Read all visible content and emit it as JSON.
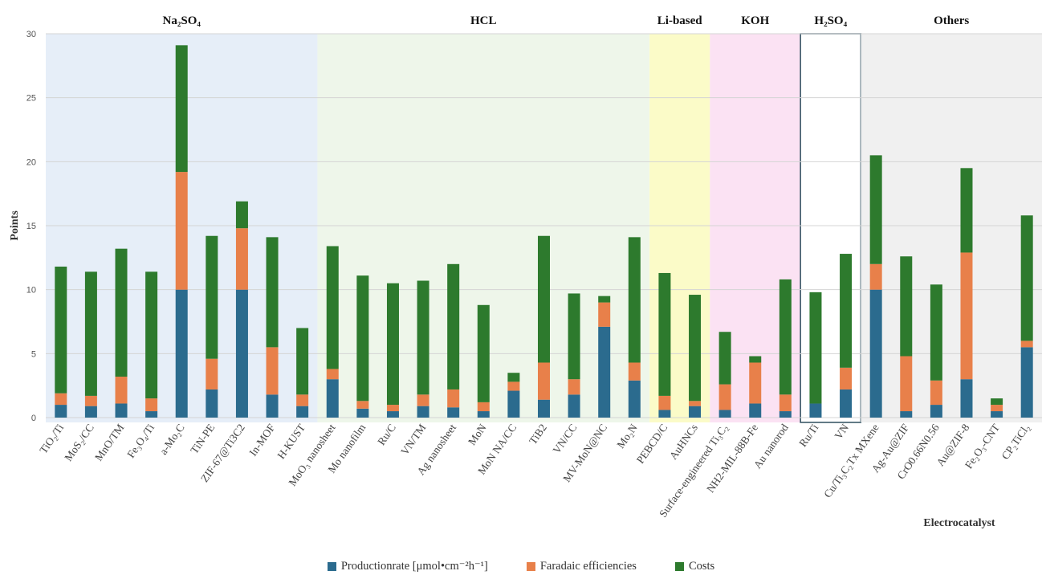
{
  "chart_data": {
    "type": "bar",
    "stacked": true,
    "xlabel": "Electrocatalyst",
    "ylabel": "Points",
    "ylim": [
      0,
      30
    ],
    "yticks": [
      0,
      5,
      10,
      15,
      20,
      25,
      30
    ],
    "grid": true,
    "legend_position": "bottom",
    "categories": [
      "TiO₂/Ti",
      "MoS₂/CC",
      "MnO/TM",
      "Fe₃O₄/Ti",
      "a-Mo₂C",
      "TiN-PE",
      "ZIF-67@Ti3C2",
      "In-MOF",
      "H-KUST",
      "MoO₃ nanosheet",
      "Mo nanofilm",
      "Ru/C",
      "VN/TM",
      "Ag nanosheet",
      "MoN",
      "MoN NA/CC",
      "TiB2",
      "VN/CC",
      "MV-MoN@NC",
      "Mo₂N",
      "PEBCD/C",
      "AuHNCs",
      "Surface-engineered Ti₃C₂",
      "NH2-MIL-88B-Fe",
      "Au nanorod",
      "Ru/Ti",
      "VN",
      "Cu/Ti₃C₂Tx MXene",
      "Ag-Au@ZIF",
      "CrO0.66N0.56",
      "Au@ZIF-8",
      "Fe₂O₃-CNT",
      "CP₂TiCl₂"
    ],
    "series": [
      {
        "name": "Productionrate [μmol•cm⁻²h⁻¹]",
        "color": "#2b6b8e",
        "values": [
          1.0,
          0.9,
          1.1,
          0.5,
          10.0,
          2.2,
          10.0,
          1.8,
          0.9,
          3.0,
          0.7,
          0.5,
          0.9,
          0.8,
          0.5,
          2.1,
          1.4,
          1.8,
          7.1,
          2.9,
          0.6,
          0.9,
          0.6,
          1.1,
          0.5,
          1.1,
          2.2,
          10.0,
          0.5,
          1.0,
          3.0,
          0.5,
          5.5
        ]
      },
      {
        "name": "Faradaic efficiencies",
        "color": "#e8804a",
        "values": [
          0.9,
          0.8,
          2.1,
          1.0,
          9.2,
          2.4,
          4.8,
          3.7,
          0.9,
          0.8,
          0.6,
          0.5,
          0.9,
          1.4,
          0.7,
          0.7,
          2.9,
          1.2,
          1.9,
          1.4,
          1.1,
          0.4,
          2.0,
          3.2,
          1.3,
          0.0,
          1.7,
          2.0,
          4.3,
          1.9,
          9.9,
          0.5,
          0.5
        ]
      },
      {
        "name": "Costs",
        "color": "#2d7a2d",
        "values": [
          9.9,
          9.7,
          10.0,
          9.9,
          9.9,
          9.6,
          2.1,
          8.6,
          5.2,
          9.6,
          9.8,
          9.5,
          8.9,
          9.8,
          7.6,
          0.7,
          9.9,
          6.7,
          0.5,
          9.8,
          9.6,
          8.3,
          4.1,
          0.5,
          9.0,
          8.7,
          8.9,
          8.5,
          7.8,
          7.5,
          6.6,
          0.5,
          9.8
        ]
      }
    ],
    "groups": [
      {
        "label": "Na₂SO₄",
        "start": 0,
        "end": 8,
        "color": "#e6eef8"
      },
      {
        "label": "HCL",
        "start": 9,
        "end": 19,
        "color": "#eef6ea"
      },
      {
        "label": "Li-based",
        "start": 20,
        "end": 21,
        "color": "#fbfbc8"
      },
      {
        "label": "KOH",
        "start": 22,
        "end": 24,
        "color": "#fbe2f3"
      },
      {
        "label": "H₂SO₄",
        "start": 25,
        "end": 26,
        "color": "#ffffff"
      },
      {
        "label": "Others",
        "start": 27,
        "end": 32,
        "color": "#f0f0f0"
      }
    ]
  }
}
